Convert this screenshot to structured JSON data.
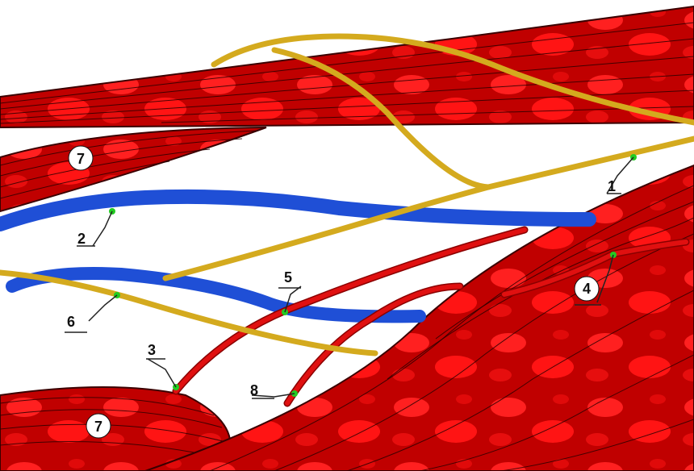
{
  "labels": {
    "l1": "1",
    "l2": "2",
    "l3": "3",
    "l4": "4",
    "l5": "5",
    "l6": "6",
    "l7a": "7",
    "l7b": "7",
    "l8": "8"
  },
  "colors": {
    "muscle": "#c80000",
    "muscle_light": "#ff1a1a",
    "muscle_dark": "#7a0000",
    "nerve": "#d4aa1e",
    "vein": "#1f4fd6",
    "artery": "#d41010",
    "marker": "#22cc22",
    "label_circle": "#ffffff"
  }
}
